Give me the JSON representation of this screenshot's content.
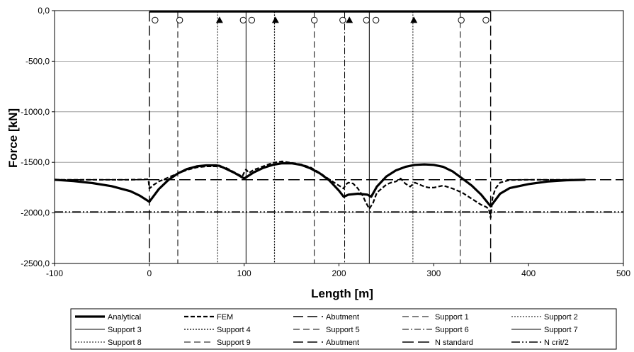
{
  "chart_data": {
    "type": "line",
    "title": "",
    "xlabel": "Length [m]",
    "ylabel": "Force [kN]",
    "xlim": [
      -100,
      500
    ],
    "ylim": [
      -2500,
      0
    ],
    "xticks": [
      {
        "value": -100,
        "label": "-100"
      },
      {
        "value": 0,
        "label": "0"
      },
      {
        "value": 100,
        "label": "100"
      },
      {
        "value": 200,
        "label": "200"
      },
      {
        "value": 300,
        "label": "300"
      },
      {
        "value": 400,
        "label": "400"
      },
      {
        "value": 500,
        "label": "500"
      }
    ],
    "yticks": [
      {
        "value": 0,
        "label": "0,0"
      },
      {
        "value": -500,
        "label": "-500,0"
      },
      {
        "value": -1000,
        "label": "-1000,0"
      },
      {
        "value": -1500,
        "label": "-1500,0"
      },
      {
        "value": -2000,
        "label": "-2000,0"
      },
      {
        "value": -2500,
        "label": "-2500,0"
      }
    ],
    "grid": "horizontal",
    "legend_position": "bottom",
    "bridge_deck": {
      "start": 0,
      "end": 360,
      "level": -10
    },
    "support_symbols": [
      {
        "x": 6,
        "symbol": "circle"
      },
      {
        "x": 32,
        "symbol": "circle"
      },
      {
        "x": 74,
        "symbol": "triangle"
      },
      {
        "x": 99,
        "symbol": "circle"
      },
      {
        "x": 108,
        "symbol": "circle"
      },
      {
        "x": 133,
        "symbol": "triangle"
      },
      {
        "x": 174,
        "symbol": "circle"
      },
      {
        "x": 204,
        "symbol": "circle"
      },
      {
        "x": 211,
        "symbol": "triangle"
      },
      {
        "x": 229,
        "symbol": "circle"
      },
      {
        "x": 239,
        "symbol": "circle"
      },
      {
        "x": 279,
        "symbol": "triangle"
      },
      {
        "x": 329,
        "symbol": "circle"
      },
      {
        "x": 355,
        "symbol": "circle"
      }
    ],
    "series": [
      {
        "name": "Analytical",
        "kind": "curve",
        "dash": "none",
        "width": 3.2,
        "x": [
          -100,
          -80,
          -60,
          -40,
          -20,
          -10,
          0,
          10,
          20,
          30,
          40,
          50,
          60,
          70,
          74,
          80,
          90,
          100,
          110,
          120,
          130,
          140,
          150,
          160,
          170,
          180,
          190,
          200,
          205,
          210,
          220,
          230,
          234,
          240,
          250,
          260,
          270,
          280,
          290,
          300,
          310,
          320,
          330,
          340,
          350,
          360,
          370,
          380,
          400,
          420,
          440,
          460
        ],
        "y": [
          -1672,
          -1685,
          -1705,
          -1735,
          -1785,
          -1830,
          -1890,
          -1765,
          -1675,
          -1610,
          -1565,
          -1540,
          -1530,
          -1530,
          -1535,
          -1560,
          -1605,
          -1660,
          -1600,
          -1555,
          -1525,
          -1510,
          -1510,
          -1525,
          -1560,
          -1610,
          -1680,
          -1780,
          -1840,
          -1820,
          -1810,
          -1820,
          -1840,
          -1740,
          -1640,
          -1580,
          -1545,
          -1525,
          -1520,
          -1525,
          -1545,
          -1590,
          -1660,
          -1730,
          -1820,
          -1935,
          -1810,
          -1755,
          -1715,
          -1690,
          -1677,
          -1672
        ]
      },
      {
        "name": "FEM",
        "kind": "curve",
        "dash": "6 3",
        "width": 2.2,
        "x": [
          -100,
          -20,
          -1,
          0,
          5,
          10,
          20,
          30,
          40,
          50,
          60,
          70,
          75,
          80,
          90,
          98,
          100,
          102,
          105,
          110,
          120,
          130,
          140,
          150,
          160,
          170,
          180,
          190,
          200,
          205,
          207,
          210,
          215,
          220,
          225,
          228,
          232,
          236,
          240,
          245,
          250,
          255,
          260,
          265,
          270,
          275,
          280,
          285,
          290,
          295,
          300,
          310,
          320,
          330,
          340,
          350,
          355,
          358,
          360,
          362,
          365,
          370,
          380,
          400,
          460
        ],
        "y": [
          -1672,
          -1672,
          -1668,
          -1760,
          -1720,
          -1690,
          -1650,
          -1610,
          -1575,
          -1550,
          -1540,
          -1540,
          -1545,
          -1550,
          -1600,
          -1640,
          -1600,
          -1570,
          -1605,
          -1575,
          -1540,
          -1505,
          -1490,
          -1505,
          -1520,
          -1550,
          -1605,
          -1670,
          -1730,
          -1760,
          -1720,
          -1700,
          -1710,
          -1760,
          -1830,
          -1890,
          -1960,
          -1900,
          -1800,
          -1760,
          -1720,
          -1700,
          -1690,
          -1660,
          -1710,
          -1740,
          -1700,
          -1720,
          -1740,
          -1750,
          -1750,
          -1730,
          -1760,
          -1800,
          -1860,
          -1920,
          -1940,
          -1960,
          -2050,
          -1850,
          -1760,
          -1700,
          -1675,
          -1672,
          -1672
        ]
      },
      {
        "name": "Abutment",
        "kind": "vertical",
        "x": 0,
        "dash": "14 6",
        "width": 1.4
      },
      {
        "name": "Support 1",
        "kind": "vertical",
        "x": 30,
        "dash": "9 5",
        "width": 1.0
      },
      {
        "name": "Support 2",
        "kind": "vertical",
        "x": 72,
        "dash": "2 2",
        "width": 1.0
      },
      {
        "name": "Support 3",
        "kind": "vertical",
        "x": 102,
        "dash": "none",
        "width": 1.0
      },
      {
        "name": "Support 4",
        "kind": "vertical",
        "x": 132,
        "dash": "2 2",
        "width": 1.2
      },
      {
        "name": "Support 5",
        "kind": "vertical",
        "x": 174,
        "dash": "9 5",
        "width": 1.0
      },
      {
        "name": "Support 6",
        "kind": "vertical",
        "x": 206,
        "dash": "9 3 2 3",
        "width": 1.0
      },
      {
        "name": "Support 7",
        "kind": "vertical",
        "x": 232,
        "dash": "none",
        "width": 1.0
      },
      {
        "name": "Support 8",
        "kind": "vertical",
        "x": 278,
        "dash": "2 2",
        "width": 1.0
      },
      {
        "name": "Support 9",
        "kind": "vertical",
        "x": 328,
        "dash": "9 5",
        "width": 1.0
      },
      {
        "name": "Abutment",
        "kind": "vertical",
        "x": 360,
        "dash": "14 6",
        "width": 1.4
      },
      {
        "name": "N standard",
        "kind": "horizontal",
        "y": -1672,
        "dash": "16 6",
        "width": 1.6
      },
      {
        "name": "N crit/2",
        "kind": "horizontal",
        "y": -1990,
        "dash": "12 3 2 3 2 3",
        "width": 1.6
      }
    ]
  }
}
